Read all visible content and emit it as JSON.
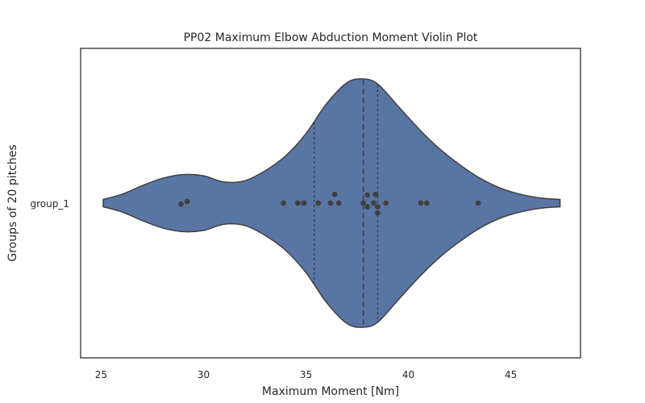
{
  "chart_data": {
    "type": "violin",
    "title": "PP02 Maximum Elbow Abduction Moment Violin Plot",
    "xlabel": "Maximum Moment [Nm]",
    "ylabel": "Groups of 20 pitches",
    "categories": [
      "group_1"
    ],
    "xlim": [
      24.0,
      48.4
    ],
    "xticks": [
      25,
      30,
      35,
      40,
      45
    ],
    "grid": false,
    "orientation": "horizontal",
    "violin_color": "#5975a4",
    "outline_color": "#404040",
    "point_color": "#404040",
    "quartiles": {
      "q1": 35.4,
      "median": 37.8,
      "q3": 38.5
    },
    "kde_extent": [
      25.1,
      47.4
    ],
    "points": [
      {
        "x": 28.9,
        "jitter": 0.008
      },
      {
        "x": 29.2,
        "jitter": -0.012
      },
      {
        "x": 33.9,
        "jitter": 0.0
      },
      {
        "x": 34.6,
        "jitter": 0.0
      },
      {
        "x": 34.9,
        "jitter": 0.0
      },
      {
        "x": 35.6,
        "jitter": 0.0
      },
      {
        "x": 36.2,
        "jitter": 0.0
      },
      {
        "x": 36.4,
        "jitter": -0.07
      },
      {
        "x": 36.6,
        "jitter": 0.0
      },
      {
        "x": 37.8,
        "jitter": 0.0
      },
      {
        "x": 38.0,
        "jitter": -0.065
      },
      {
        "x": 38.0,
        "jitter": 0.03
      },
      {
        "x": 38.3,
        "jitter": 0.0
      },
      {
        "x": 38.4,
        "jitter": -0.07
      },
      {
        "x": 38.5,
        "jitter": 0.03
      },
      {
        "x": 38.5,
        "jitter": 0.08
      },
      {
        "x": 38.9,
        "jitter": 0.0
      },
      {
        "x": 40.6,
        "jitter": 0.0
      },
      {
        "x": 40.9,
        "jitter": 0.0
      },
      {
        "x": 43.4,
        "jitter": 0.0
      }
    ],
    "density_shape": [
      [
        25.1,
        0.03
      ],
      [
        26.0,
        0.07
      ],
      [
        27.0,
        0.14
      ],
      [
        28.0,
        0.2
      ],
      [
        29.0,
        0.23
      ],
      [
        30.0,
        0.22
      ],
      [
        31.0,
        0.17
      ],
      [
        32.0,
        0.18
      ],
      [
        33.0,
        0.26
      ],
      [
        34.0,
        0.38
      ],
      [
        35.0,
        0.56
      ],
      [
        36.0,
        0.8
      ],
      [
        37.0,
        0.97
      ],
      [
        37.8,
        1.0
      ],
      [
        38.5,
        0.96
      ],
      [
        39.5,
        0.78
      ],
      [
        40.5,
        0.6
      ],
      [
        41.5,
        0.44
      ],
      [
        42.5,
        0.31
      ],
      [
        43.5,
        0.2
      ],
      [
        44.5,
        0.12
      ],
      [
        45.5,
        0.07
      ],
      [
        46.5,
        0.04
      ],
      [
        47.4,
        0.03
      ]
    ]
  }
}
